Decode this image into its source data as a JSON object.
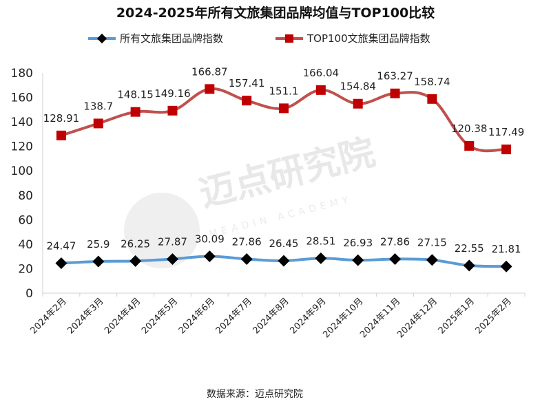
{
  "title": "2024-2025年所有文旅集团品牌均值与TOP100比较",
  "watermark": {
    "cn": "迈点研究院",
    "en": "MEADIN ACADEMY"
  },
  "source": "数据来源：迈点研究院",
  "chart_data": {
    "type": "line",
    "title": "2024-2025年所有文旅集团品牌均值与TOP100比较",
    "categories": [
      "2024年2月",
      "2024年3月",
      "2024年4月",
      "2024年5月",
      "2024年6月",
      "2024年7月",
      "2024年8月",
      "2024年9月",
      "2024年10月",
      "2024年11月",
      "2024年12月",
      "2025年1月",
      "2025年2月"
    ],
    "series": [
      {
        "name": "所有文旅集团品牌指数",
        "values": [
          24.47,
          25.9,
          26.25,
          27.87,
          30.09,
          27.86,
          26.45,
          28.51,
          26.93,
          27.86,
          27.15,
          22.55,
          21.81
        ],
        "color": "#5b9bd5",
        "marker": "diamond",
        "marker_color": "#000000"
      },
      {
        "name": "TOP100文旅集团品牌指数",
        "values": [
          128.91,
          138.7,
          148.15,
          149.16,
          166.87,
          157.41,
          151.1,
          166.04,
          154.84,
          163.27,
          158.74,
          120.38,
          117.49
        ],
        "color": "#c0504d",
        "marker": "square",
        "marker_color": "#c00000"
      }
    ],
    "ylim": [
      0,
      180
    ],
    "yticks": [
      0,
      20,
      40,
      60,
      80,
      100,
      120,
      140,
      160,
      180
    ],
    "xlabel": "",
    "ylabel": "",
    "grid": false,
    "legend_position": "top"
  }
}
